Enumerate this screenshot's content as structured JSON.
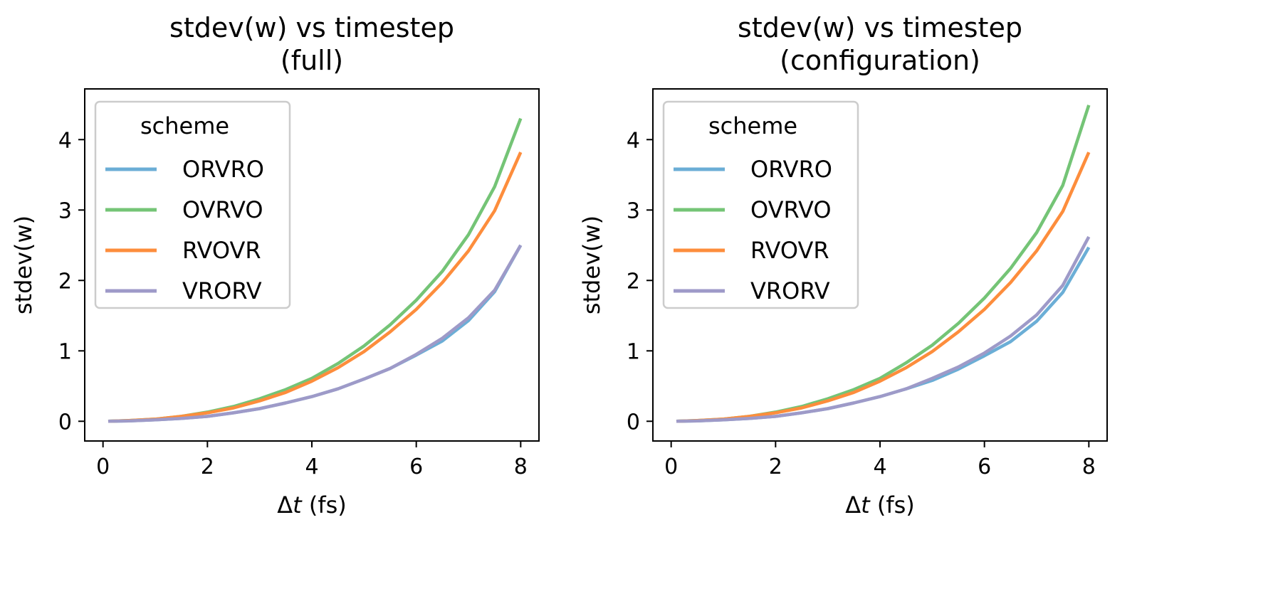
{
  "figure": {
    "panel_count": 2
  },
  "chart_data": [
    {
      "type": "line",
      "title_lines": [
        "stdev(w) vs timestep",
        "(full)"
      ],
      "xlabel_prefix": "Δ",
      "xlabel_var": "t",
      "xlabel_suffix": " (fs)",
      "ylabel": "stdev(w)",
      "xlim": [
        -0.35,
        8.35
      ],
      "ylim": [
        -0.28,
        4.72
      ],
      "xticks": [
        0,
        2,
        4,
        6,
        8
      ],
      "yticks": [
        0,
        1,
        2,
        3,
        4
      ],
      "grid": false,
      "legend": {
        "title": "scheme",
        "placement": "top-left"
      },
      "x": [
        0.1,
        0.5,
        1.0,
        1.5,
        2.0,
        2.5,
        3.0,
        3.5,
        4.0,
        4.5,
        5.0,
        5.5,
        6.0,
        6.5,
        7.0,
        7.5,
        8.0
      ],
      "series": [
        {
          "name": "ORVRO",
          "color": "#6baed6",
          "values": [
            0.0,
            0.005,
            0.02,
            0.04,
            0.07,
            0.12,
            0.18,
            0.26,
            0.35,
            0.46,
            0.6,
            0.75,
            0.94,
            1.14,
            1.43,
            1.84,
            2.5
          ]
        },
        {
          "name": "OVRVO",
          "color": "#74c476",
          "values": [
            0.0,
            0.01,
            0.03,
            0.07,
            0.13,
            0.21,
            0.32,
            0.45,
            0.61,
            0.82,
            1.07,
            1.37,
            1.72,
            2.13,
            2.65,
            3.33,
            4.3
          ]
        },
        {
          "name": "RVOVR",
          "color": "#fd8d3c",
          "values": [
            0.0,
            0.01,
            0.03,
            0.07,
            0.12,
            0.19,
            0.29,
            0.41,
            0.57,
            0.76,
            0.99,
            1.27,
            1.59,
            1.97,
            2.42,
            2.99,
            3.82
          ]
        },
        {
          "name": "VRORV",
          "color": "#9e9ac8",
          "values": [
            0.0,
            0.005,
            0.02,
            0.04,
            0.07,
            0.12,
            0.18,
            0.26,
            0.35,
            0.46,
            0.6,
            0.75,
            0.95,
            1.18,
            1.47,
            1.86,
            2.5
          ]
        }
      ]
    },
    {
      "type": "line",
      "title_lines": [
        "stdev(w) vs timestep",
        "(configuration)"
      ],
      "xlabel_prefix": "Δ",
      "xlabel_var": "t",
      "xlabel_suffix": " (fs)",
      "ylabel": "stdev(w)",
      "xlim": [
        -0.35,
        8.35
      ],
      "ylim": [
        -0.28,
        4.72
      ],
      "xticks": [
        0,
        2,
        4,
        6,
        8
      ],
      "yticks": [
        0,
        1,
        2,
        3,
        4
      ],
      "grid": false,
      "legend": {
        "title": "scheme",
        "placement": "top-left"
      },
      "x": [
        0.1,
        0.5,
        1.0,
        1.5,
        2.0,
        2.5,
        3.0,
        3.5,
        4.0,
        4.5,
        5.0,
        5.5,
        6.0,
        6.5,
        7.0,
        7.5,
        8.0
      ],
      "series": [
        {
          "name": "ORVRO",
          "color": "#6baed6",
          "values": [
            0.0,
            0.005,
            0.02,
            0.04,
            0.07,
            0.12,
            0.18,
            0.26,
            0.35,
            0.46,
            0.58,
            0.74,
            0.93,
            1.13,
            1.42,
            1.83,
            2.47
          ]
        },
        {
          "name": "OVRVO",
          "color": "#74c476",
          "values": [
            0.0,
            0.01,
            0.03,
            0.07,
            0.13,
            0.21,
            0.32,
            0.45,
            0.61,
            0.83,
            1.08,
            1.39,
            1.75,
            2.17,
            2.68,
            3.35,
            4.49
          ]
        },
        {
          "name": "RVOVR",
          "color": "#fd8d3c",
          "values": [
            0.0,
            0.01,
            0.03,
            0.07,
            0.12,
            0.19,
            0.29,
            0.41,
            0.57,
            0.76,
            0.99,
            1.27,
            1.59,
            1.97,
            2.42,
            2.98,
            3.82
          ]
        },
        {
          "name": "VRORV",
          "color": "#9e9ac8",
          "values": [
            0.0,
            0.005,
            0.02,
            0.04,
            0.07,
            0.12,
            0.18,
            0.26,
            0.35,
            0.46,
            0.61,
            0.77,
            0.97,
            1.21,
            1.51,
            1.93,
            2.62
          ]
        }
      ]
    }
  ]
}
